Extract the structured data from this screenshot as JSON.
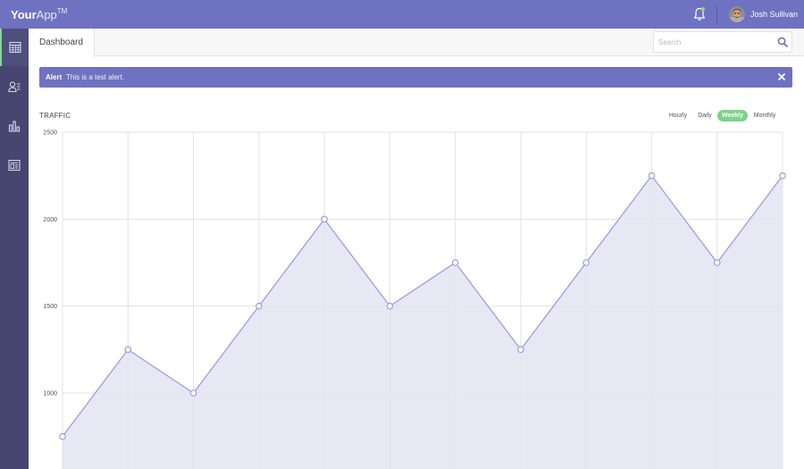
{
  "app": {
    "brand_bold": "Your",
    "brand_rest": "App",
    "brand_mark": "TM"
  },
  "user": {
    "name": "Josh Sullivan"
  },
  "sidebar": {
    "items": [
      {
        "icon": "calendar-icon",
        "active": true
      },
      {
        "icon": "user-list-icon",
        "active": false
      },
      {
        "icon": "bar-chart-icon",
        "active": false
      },
      {
        "icon": "newspaper-icon",
        "active": false
      }
    ]
  },
  "header": {
    "tab": "Dashboard",
    "search_placeholder": "Search"
  },
  "alert": {
    "title": "Alert",
    "message": "This is a test alert."
  },
  "chart_panel": {
    "title": "TRAFFIC",
    "ranges": [
      "Hourly",
      "Daily",
      "Weekly",
      "Monthly"
    ],
    "active_range": "Weekly"
  },
  "colors": {
    "brand": "#6f72c0",
    "sidebar": "#464670",
    "accent": "#7ddc8a",
    "line": "#9c9edb",
    "fill": "#e4e4f2"
  },
  "chart_data": {
    "type": "area",
    "title": "TRAFFIC",
    "x": [
      0,
      1,
      2,
      3,
      4,
      5,
      6,
      7,
      8,
      9,
      10,
      11
    ],
    "values": [
      750,
      1250,
      1000,
      1500,
      2000,
      1500,
      1750,
      1250,
      1750,
      2250,
      1750,
      2250
    ],
    "yticks": [
      2500,
      2000,
      1500,
      1000
    ],
    "ylim": [
      600,
      2500
    ],
    "grid": true
  }
}
